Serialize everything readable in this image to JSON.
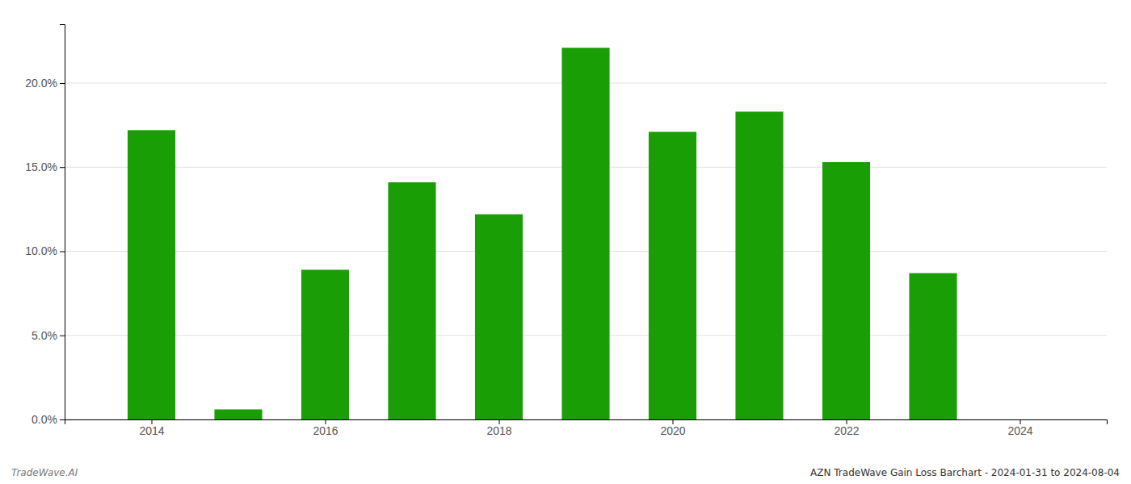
{
  "chart_data": {
    "type": "bar",
    "x": [
      2014,
      2015,
      2016,
      2017,
      2018,
      2019,
      2020,
      2021,
      2022,
      2023
    ],
    "values": [
      0.172,
      0.006,
      0.089,
      0.141,
      0.122,
      0.221,
      0.171,
      0.183,
      0.153,
      0.087
    ],
    "color": "#1a9e06",
    "xlim": [
      2013.0,
      2025.0
    ],
    "xticks": [
      2014,
      2016,
      2018,
      2020,
      2022,
      2024
    ],
    "ylim": [
      0,
      0.235
    ],
    "yticks": [
      {
        "value": 0.0,
        "label": "0.0%"
      },
      {
        "value": 0.05,
        "label": "5.0%"
      },
      {
        "value": 0.1,
        "label": "10.0%"
      },
      {
        "value": 0.15,
        "label": "15.0%"
      },
      {
        "value": 0.2,
        "label": "20.0%"
      }
    ],
    "grid": true,
    "annotations": [
      "TradeWave.AI",
      "AZN TradeWave Gain Loss Barchart - 2024-01-31 to 2024-08-04"
    ]
  }
}
